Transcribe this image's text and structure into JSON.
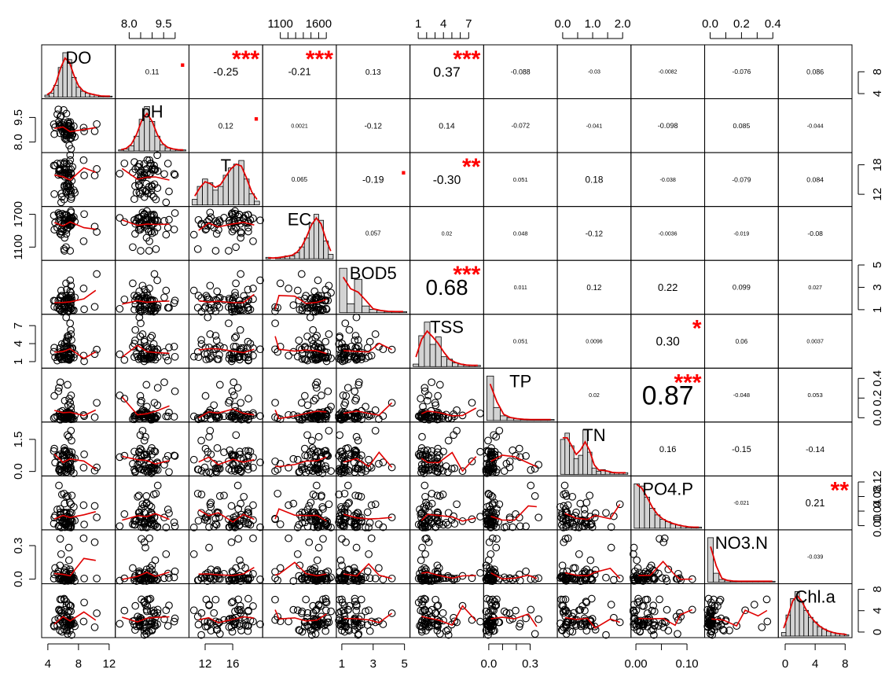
{
  "chart_data": {
    "type": "scatter-matrix",
    "variables": [
      "DO",
      "pH",
      "T",
      "EC",
      "BOD5",
      "TSS",
      "TP",
      "TN",
      "PO4.P",
      "NO3.N",
      "Chl.a"
    ],
    "ranges": [
      [
        3.5,
        12.5
      ],
      [
        7.5,
        10.5
      ],
      [
        10,
        20
      ],
      [
        900,
        1800
      ],
      [
        0.8,
        5.2
      ],
      [
        0.3,
        8.5
      ],
      [
        -0.02,
        0.48
      ],
      [
        -0.1,
        2.2
      ],
      [
        -0.005,
        0.13
      ],
      [
        -0.02,
        0.42
      ],
      [
        -0.6,
        8.6
      ]
    ],
    "axis_ticks": [
      {
        "var": 0,
        "side": "bottom",
        "ticks": [
          4,
          8,
          12
        ],
        "labels": [
          "4",
          "8",
          "12"
        ]
      },
      {
        "var": 1,
        "side": "top",
        "ticks": [
          8,
          8.5,
          9,
          9.5,
          10
        ],
        "labels": [
          "8.0",
          "",
          "",
          "9.5",
          ""
        ]
      },
      {
        "var": 2,
        "side": "bottom",
        "ticks": [
          12,
          16
        ],
        "labels": [
          "12",
          "16"
        ]
      },
      {
        "var": 3,
        "side": "top",
        "ticks": [
          1100,
          1200,
          1300,
          1400,
          1500,
          1600,
          1700
        ],
        "labels": [
          "1100",
          "",
          "",
          "",
          "",
          "1600",
          ""
        ]
      },
      {
        "var": 4,
        "side": "bottom",
        "ticks": [
          1,
          3,
          5
        ],
        "labels": [
          "1",
          "3",
          "5"
        ]
      },
      {
        "var": 5,
        "side": "top",
        "ticks": [
          1,
          2,
          3,
          4,
          5,
          6,
          7
        ],
        "labels": [
          "1",
          "",
          "",
          "4",
          "",
          "",
          "7"
        ]
      },
      {
        "var": 6,
        "side": "bottom",
        "ticks": [
          0,
          0.1,
          0.2,
          0.3
        ],
        "labels": [
          "0.0",
          "",
          "",
          "0.3"
        ]
      },
      {
        "var": 7,
        "side": "top",
        "ticks": [
          0,
          0.5,
          1,
          1.5,
          2
        ],
        "labels": [
          "0.0",
          "",
          "1.0",
          "",
          "2.0"
        ]
      },
      {
        "var": 8,
        "side": "bottom",
        "ticks": [
          0,
          0.05,
          0.1
        ],
        "labels": [
          "0.00",
          "",
          "0.10"
        ]
      },
      {
        "var": 9,
        "side": "top",
        "ticks": [
          0,
          0.1,
          0.2,
          0.3,
          0.4
        ],
        "labels": [
          "0.0",
          "",
          "0.2",
          "",
          "0.4"
        ]
      },
      {
        "var": 10,
        "side": "bottom",
        "ticks": [
          0,
          4,
          8
        ],
        "labels": [
          "0",
          "4",
          "8"
        ]
      },
      {
        "var": 0,
        "side": "right",
        "ticks": [
          4,
          8
        ],
        "labels": [
          "4",
          "8"
        ]
      },
      {
        "var": 1,
        "side": "left",
        "ticks": [
          8,
          9.5
        ],
        "labels": [
          "8.0",
          "9.5"
        ]
      },
      {
        "var": 2,
        "side": "right",
        "ticks": [
          12,
          18
        ],
        "labels": [
          "12",
          "18"
        ]
      },
      {
        "var": 3,
        "side": "left",
        "ticks": [
          1100,
          1700
        ],
        "labels": [
          "1100",
          "1700"
        ]
      },
      {
        "var": 4,
        "side": "right",
        "ticks": [
          1,
          3,
          5
        ],
        "labels": [
          "1",
          "3",
          "5"
        ]
      },
      {
        "var": 5,
        "side": "left",
        "ticks": [
          1,
          4,
          7
        ],
        "labels": [
          "1",
          "4",
          "7"
        ]
      },
      {
        "var": 6,
        "side": "right",
        "ticks": [
          0,
          0.2,
          0.4
        ],
        "labels": [
          "0.0",
          "0.2",
          "0.4"
        ]
      },
      {
        "var": 7,
        "side": "left",
        "ticks": [
          0,
          1.5
        ],
        "labels": [
          "0.0",
          "1.5"
        ]
      },
      {
        "var": 8,
        "side": "right",
        "ticks": [
          0,
          0.04,
          0.08,
          0.12
        ],
        "labels": [
          "0.00",
          "0.04",
          "0.08",
          "0.12"
        ]
      },
      {
        "var": 9,
        "side": "left",
        "ticks": [
          0,
          0.3
        ],
        "labels": [
          "0.0",
          "0.3"
        ]
      },
      {
        "var": 10,
        "side": "right",
        "ticks": [
          0,
          4,
          8
        ],
        "labels": [
          "0",
          "4",
          "8"
        ]
      }
    ],
    "correlations": [
      {
        "row": 0,
        "col": 1,
        "r": "0.11",
        "stars": "."
      },
      {
        "row": 0,
        "col": 2,
        "r": "-0.25",
        "stars": "***"
      },
      {
        "row": 0,
        "col": 3,
        "r": "-0.21",
        "stars": "***"
      },
      {
        "row": 0,
        "col": 4,
        "r": "0.13",
        "stars": ""
      },
      {
        "row": 0,
        "col": 5,
        "r": "0.37",
        "stars": "***"
      },
      {
        "row": 0,
        "col": 6,
        "r": "-0.088",
        "stars": ""
      },
      {
        "row": 0,
        "col": 7,
        "r": "-0.03",
        "stars": ""
      },
      {
        "row": 0,
        "col": 8,
        "r": "-0.0082",
        "stars": ""
      },
      {
        "row": 0,
        "col": 9,
        "r": "-0.076",
        "stars": ""
      },
      {
        "row": 0,
        "col": 10,
        "r": "0.086",
        "stars": ""
      },
      {
        "row": 1,
        "col": 2,
        "r": "0.12",
        "stars": "."
      },
      {
        "row": 1,
        "col": 3,
        "r": "0.0021",
        "stars": ""
      },
      {
        "row": 1,
        "col": 4,
        "r": "-0.12",
        "stars": ""
      },
      {
        "row": 1,
        "col": 5,
        "r": "0.14",
        "stars": ""
      },
      {
        "row": 1,
        "col": 6,
        "r": "-0.072",
        "stars": ""
      },
      {
        "row": 1,
        "col": 7,
        "r": "-0.041",
        "stars": ""
      },
      {
        "row": 1,
        "col": 8,
        "r": "-0.098",
        "stars": ""
      },
      {
        "row": 1,
        "col": 9,
        "r": "0.085",
        "stars": ""
      },
      {
        "row": 1,
        "col": 10,
        "r": "-0.044",
        "stars": ""
      },
      {
        "row": 2,
        "col": 3,
        "r": "0.065",
        "stars": ""
      },
      {
        "row": 2,
        "col": 4,
        "r": "-0.19",
        "stars": "."
      },
      {
        "row": 2,
        "col": 5,
        "r": "-0.30",
        "stars": "**"
      },
      {
        "row": 2,
        "col": 6,
        "r": "0.051",
        "stars": ""
      },
      {
        "row": 2,
        "col": 7,
        "r": "0.18",
        "stars": ""
      },
      {
        "row": 2,
        "col": 8,
        "r": "-0.038",
        "stars": ""
      },
      {
        "row": 2,
        "col": 9,
        "r": "-0.079",
        "stars": ""
      },
      {
        "row": 2,
        "col": 10,
        "r": "0.084",
        "stars": ""
      },
      {
        "row": 3,
        "col": 4,
        "r": "0.057",
        "stars": ""
      },
      {
        "row": 3,
        "col": 5,
        "r": "0.02",
        "stars": ""
      },
      {
        "row": 3,
        "col": 6,
        "r": "0.048",
        "stars": ""
      },
      {
        "row": 3,
        "col": 7,
        "r": "-0.12",
        "stars": ""
      },
      {
        "row": 3,
        "col": 8,
        "r": "-0.0036",
        "stars": ""
      },
      {
        "row": 3,
        "col": 9,
        "r": "-0.019",
        "stars": ""
      },
      {
        "row": 3,
        "col": 10,
        "r": "-0.08",
        "stars": ""
      },
      {
        "row": 4,
        "col": 5,
        "r": "0.68",
        "stars": "***"
      },
      {
        "row": 4,
        "col": 6,
        "r": "0.011",
        "stars": ""
      },
      {
        "row": 4,
        "col": 7,
        "r": "0.12",
        "stars": ""
      },
      {
        "row": 4,
        "col": 8,
        "r": "0.22",
        "stars": ""
      },
      {
        "row": 4,
        "col": 9,
        "r": "0.099",
        "stars": ""
      },
      {
        "row": 4,
        "col": 10,
        "r": "0.027",
        "stars": ""
      },
      {
        "row": 5,
        "col": 6,
        "r": "0.051",
        "stars": ""
      },
      {
        "row": 5,
        "col": 7,
        "r": "0.0096",
        "stars": ""
      },
      {
        "row": 5,
        "col": 8,
        "r": "0.30",
        "stars": "*"
      },
      {
        "row": 5,
        "col": 9,
        "r": "0.06",
        "stars": ""
      },
      {
        "row": 5,
        "col": 10,
        "r": "0.0037",
        "stars": ""
      },
      {
        "row": 6,
        "col": 7,
        "r": "0.02",
        "stars": ""
      },
      {
        "row": 6,
        "col": 8,
        "r": "0.87",
        "stars": "***"
      },
      {
        "row": 6,
        "col": 9,
        "r": "-0.048",
        "stars": ""
      },
      {
        "row": 6,
        "col": 10,
        "r": "0.053",
        "stars": ""
      },
      {
        "row": 7,
        "col": 8,
        "r": "0.16",
        "stars": ""
      },
      {
        "row": 7,
        "col": 9,
        "r": "-0.15",
        "stars": ""
      },
      {
        "row": 7,
        "col": 10,
        "r": "-0.14",
        "stars": ""
      },
      {
        "row": 8,
        "col": 9,
        "r": "-0.021",
        "stars": ""
      },
      {
        "row": 8,
        "col": 10,
        "r": "0.21",
        "stars": "**"
      },
      {
        "row": 9,
        "col": 10,
        "r": "-0.039",
        "stars": ""
      }
    ],
    "histograms": [
      {
        "var": 0,
        "counts": [
          2,
          4,
          12,
          30,
          45,
          38,
          20,
          10,
          6,
          4,
          3,
          2,
          1,
          1,
          1
        ]
      },
      {
        "var": 1,
        "counts": [
          1,
          2,
          5,
          14,
          30,
          42,
          28,
          14,
          6,
          3,
          2,
          1,
          1
        ]
      },
      {
        "var": 2,
        "counts": [
          3,
          10,
          14,
          12,
          8,
          10,
          16,
          20,
          22,
          24,
          14,
          6,
          2
        ]
      },
      {
        "var": 3,
        "counts": [
          1,
          0,
          1,
          1,
          2,
          2,
          4,
          8,
          14,
          24,
          30,
          26,
          12,
          3
        ]
      },
      {
        "var": 4,
        "counts": [
          40,
          8,
          30,
          6,
          3,
          2,
          1,
          1,
          1
        ]
      },
      {
        "var": 5,
        "counts": [
          2,
          25,
          36,
          18,
          24,
          8,
          6,
          3,
          2,
          1,
          1,
          1
        ]
      },
      {
        "var": 6,
        "counts": [
          48,
          14,
          5,
          3,
          2,
          1,
          1,
          1,
          1,
          1
        ]
      },
      {
        "var": 7,
        "counts": [
          22,
          26,
          18,
          10,
          12,
          28,
          14,
          4,
          2,
          3,
          2,
          1,
          1,
          1,
          1
        ]
      },
      {
        "var": 8,
        "counts": [
          40,
          38,
          28,
          18,
          12,
          8,
          6,
          4,
          3,
          2,
          1,
          1,
          1
        ]
      },
      {
        "var": 9,
        "counts": [
          50,
          10,
          3,
          2,
          1,
          1,
          1,
          1,
          1,
          1,
          1,
          1
        ]
      },
      {
        "var": 10,
        "counts": [
          3,
          18,
          32,
          38,
          30,
          22,
          16,
          12,
          8,
          6,
          4,
          3,
          2,
          2,
          1
        ]
      }
    ]
  }
}
